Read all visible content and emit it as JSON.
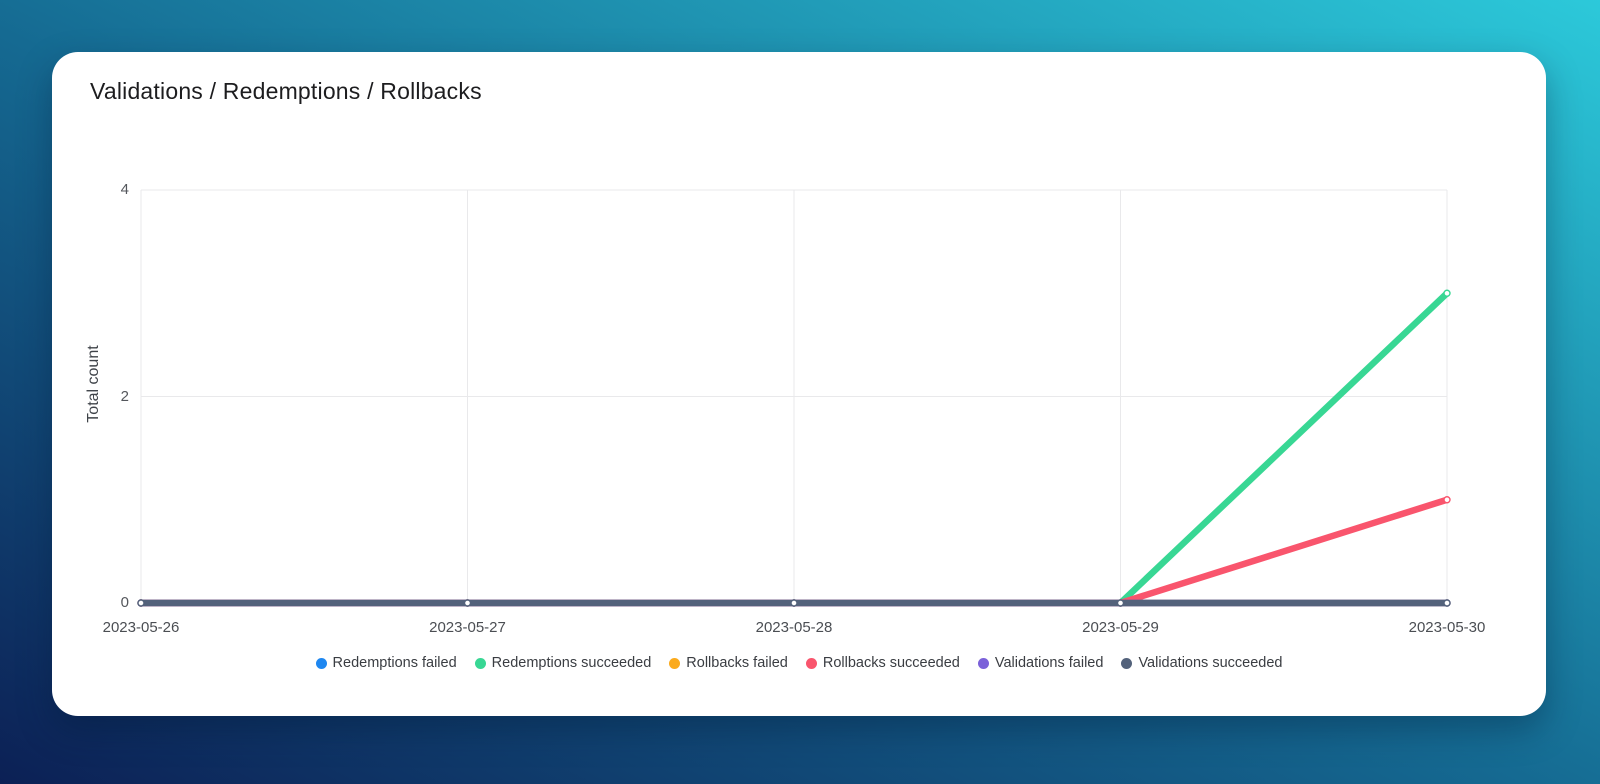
{
  "chart": {
    "title": "Validations / Redemptions / Rollbacks",
    "ylabel": "Total count"
  },
  "chart_data": {
    "type": "line",
    "title": "Validations / Redemptions / Rollbacks",
    "xlabel": "",
    "ylabel": "Total count",
    "categories": [
      "2023-05-26",
      "2023-05-27",
      "2023-05-28",
      "2023-05-29",
      "2023-05-30"
    ],
    "yticks": [
      0,
      2,
      4
    ],
    "ylim": [
      0,
      4
    ],
    "grid": true,
    "legend_position": "bottom",
    "series": [
      {
        "name": "Redemptions failed",
        "color": "#1e87f0",
        "values": [
          0,
          0,
          0,
          0,
          0
        ]
      },
      {
        "name": "Redemptions succeeded",
        "color": "#38d794",
        "values": [
          0,
          0,
          0,
          0,
          3
        ]
      },
      {
        "name": "Rollbacks failed",
        "color": "#fbaa1c",
        "values": [
          0,
          0,
          0,
          0,
          0
        ]
      },
      {
        "name": "Rollbacks succeeded",
        "color": "#f9556d",
        "values": [
          0,
          0,
          0,
          0,
          1
        ]
      },
      {
        "name": "Validations failed",
        "color": "#7b61d9",
        "values": [
          0,
          0,
          0,
          0,
          0
        ]
      },
      {
        "name": "Validations succeeded",
        "color": "#53627b",
        "values": [
          0,
          0,
          0,
          0,
          0
        ]
      }
    ]
  },
  "colors": {
    "bg_gradient_start": "#2cc9da",
    "bg_gradient_mid": "#156a92",
    "bg_gradient_end": "#0c2055",
    "card": "#ffffff",
    "gridline": "#e9e9eb",
    "marker_fill": "#ffffff"
  }
}
